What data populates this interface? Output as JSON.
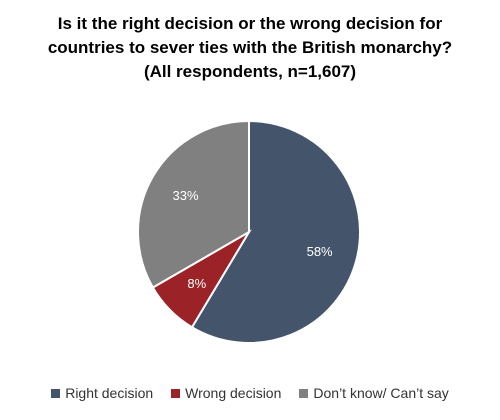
{
  "chart_data": {
    "type": "pie",
    "title": "Is it the right decision or the wrong decision for countries to sever ties with the British monarchy?",
    "subtitle": "(All respondents, n=1,607)",
    "title_lines": [
      "Is it the right decision or the wrong decision for",
      "countries to sever ties with the British monarchy?",
      "(All respondents, n=1,607)"
    ],
    "legend_position": "bottom",
    "slices": [
      {
        "name": "Right decision",
        "value": 58,
        "label": "58%",
        "color": "#44546a"
      },
      {
        "name": "Wrong decision",
        "value": 8,
        "label": "8%",
        "color": "#9b2226"
      },
      {
        "name": "Don’t know/ Can’t say",
        "value": 33,
        "label": "33%",
        "color": "#808080"
      }
    ]
  }
}
